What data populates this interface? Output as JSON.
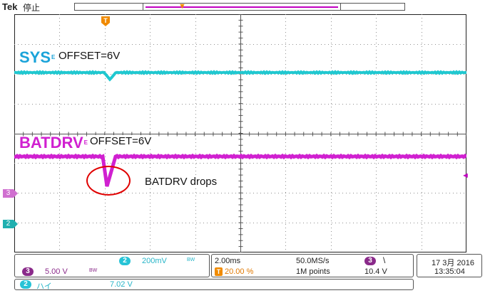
{
  "header": {
    "brand": "Tek",
    "state": "停止",
    "trigger_marker": "T"
  },
  "channels": {
    "sys": {
      "label": "SYS",
      "superscript": "E",
      "offset": "OFFSET=6V",
      "color": "#1aa3d9"
    },
    "batdrv": {
      "label": "BATDRV",
      "superscript": "E",
      "offset": "OFFSET=6V",
      "color": "#d020d0"
    }
  },
  "annotation": {
    "text": "BATDRV drops",
    "circle_color": "#e00000"
  },
  "ground_markers": {
    "ch3": "3",
    "ch2": "2"
  },
  "readout": {
    "ch2": {
      "badge": "2",
      "scale": "200mV",
      "bw": "BW"
    },
    "ch3": {
      "badge": "3",
      "scale": "5.00 V",
      "bw": "BW"
    },
    "horizontal": {
      "time_div": "2.00ms",
      "sample_rate": "50.0MS/s",
      "trigger_pos_badge": "T",
      "trigger_pos": "20.00 %",
      "record_length": "1M points"
    },
    "trigger": {
      "source_badge": "3",
      "slope": "\\",
      "level": "10.4 V"
    },
    "datetime": {
      "date": "17 3月  2016",
      "time": "13:35:04"
    },
    "math": {
      "badge": "2",
      "label": "ハイ",
      "value": "7.02 V"
    }
  },
  "colors": {
    "sys_trace": "#20c8d0",
    "batdrv_trace": "#d020d0",
    "grid": "#909090"
  }
}
